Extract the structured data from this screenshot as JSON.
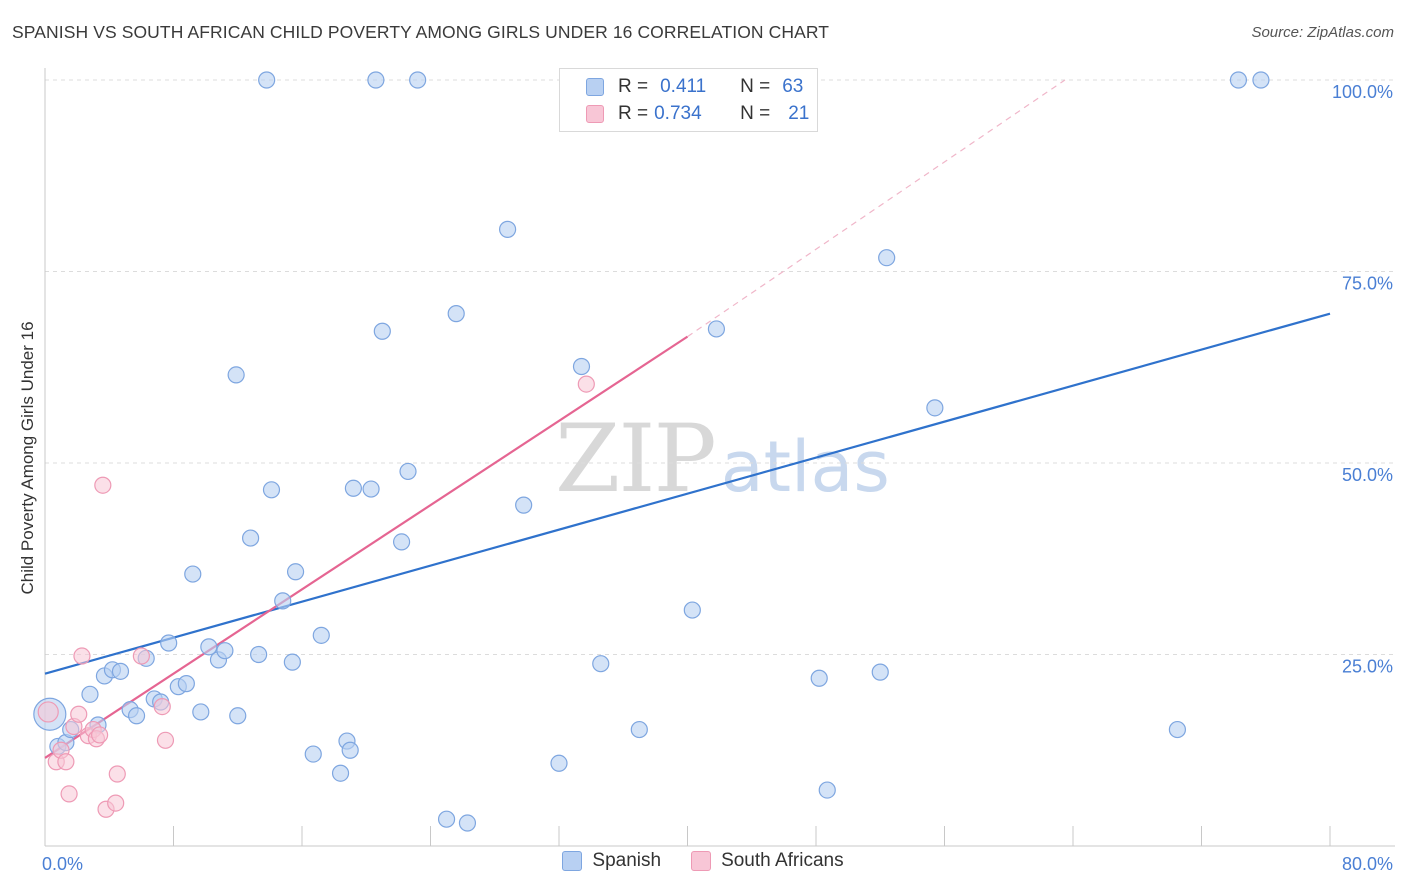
{
  "header": {
    "title": "SPANISH VS SOUTH AFRICAN CHILD POVERTY AMONG GIRLS UNDER 16 CORRELATION CHART",
    "source": "Source: ZipAtlas.com"
  },
  "watermark": {
    "zip": "ZIP",
    "atlas": "atlas"
  },
  "legend": {
    "rows": [
      {
        "r_label": "R =",
        "r_value": "0.411",
        "n_label": "N =",
        "n_value": "63"
      },
      {
        "r_label": "R =",
        "r_value": "0.734",
        "n_label": "N =",
        "n_value": "21"
      }
    ]
  },
  "colors": {
    "spanish_fill": "#b8d0f2",
    "spanish_stroke": "#7ea6e0",
    "spanish_line": "#2f72cc",
    "sa_fill": "#f8c6d6",
    "sa_stroke": "#ee9ab5",
    "sa_line": "#e56592",
    "grid": "#dcdcdc"
  },
  "chart_data": {
    "type": "scatter",
    "title": "SPANISH VS SOUTH AFRICAN CHILD POVERTY AMONG GIRLS UNDER 16 CORRELATION CHART",
    "xlabel": "",
    "ylabel": "Child Poverty Among Girls Under 16",
    "xlim": [
      0,
      80
    ],
    "ylim": [
      0,
      102
    ],
    "x_tick_labels": [
      {
        "value": 0,
        "label": "0.0%"
      },
      {
        "value": 80,
        "label": "80.0%"
      }
    ],
    "y_tick_labels": [
      {
        "value": 25,
        "label": "25.0%"
      },
      {
        "value": 50,
        "label": "50.0%"
      },
      {
        "value": 75,
        "label": "75.0%"
      },
      {
        "value": 100,
        "label": "100.0%"
      }
    ],
    "grid": true,
    "legend_position": "top-center",
    "series": [
      {
        "name": "Spanish",
        "R": 0.411,
        "N": 63,
        "trend": {
          "x": [
            0,
            80
          ],
          "y": [
            22.5,
            69.5
          ]
        },
        "points": [
          [
            0.3,
            17.2,
            16
          ],
          [
            0.8,
            13,
            8
          ],
          [
            1.3,
            13.5,
            8
          ],
          [
            1.6,
            15.2,
            8
          ],
          [
            2.8,
            19.8,
            8
          ],
          [
            3.3,
            15.8,
            8
          ],
          [
            3.7,
            22.2,
            8
          ],
          [
            4.2,
            23,
            8
          ],
          [
            4.7,
            22.8,
            8
          ],
          [
            5.3,
            17.8,
            8
          ],
          [
            5.7,
            17,
            8
          ],
          [
            6.3,
            24.5,
            8
          ],
          [
            6.8,
            19.2,
            8
          ],
          [
            7.2,
            18.8,
            8
          ],
          [
            7.7,
            26.5,
            8
          ],
          [
            8.3,
            20.8,
            8
          ],
          [
            8.8,
            21.2,
            8
          ],
          [
            9.2,
            35.5,
            8
          ],
          [
            9.7,
            17.5,
            8
          ],
          [
            10.2,
            26,
            8
          ],
          [
            10.8,
            24.3,
            8
          ],
          [
            11.2,
            25.5,
            8
          ],
          [
            12.0,
            17,
            8
          ],
          [
            11.9,
            61.5,
            8
          ],
          [
            12.8,
            40.2,
            8
          ],
          [
            13.3,
            25,
            8
          ],
          [
            14.1,
            46.5,
            8
          ],
          [
            14.8,
            32,
            8
          ],
          [
            15.4,
            24,
            8
          ],
          [
            15.6,
            35.8,
            8
          ],
          [
            16.7,
            12,
            8
          ],
          [
            17.2,
            27.5,
            8
          ],
          [
            18.4,
            9.5,
            8
          ],
          [
            18.8,
            13.7,
            8
          ],
          [
            19.0,
            12.5,
            8
          ],
          [
            19.2,
            46.7,
            8
          ],
          [
            20.3,
            46.6,
            8
          ],
          [
            21.0,
            67.2,
            8
          ],
          [
            22.2,
            39.7,
            8
          ],
          [
            22.6,
            48.9,
            8
          ],
          [
            13.8,
            100,
            8
          ],
          [
            20.6,
            100,
            8
          ],
          [
            23.2,
            100,
            8
          ],
          [
            25.0,
            3.5,
            8
          ],
          [
            25.6,
            69.5,
            8
          ],
          [
            26.3,
            3,
            8
          ],
          [
            28.8,
            80.5,
            8
          ],
          [
            29.8,
            44.5,
            8
          ],
          [
            32.0,
            10.8,
            8
          ],
          [
            33.4,
            62.6,
            8
          ],
          [
            34.6,
            23.8,
            8
          ],
          [
            37.0,
            15.2,
            8
          ],
          [
            40.3,
            30.8,
            8
          ],
          [
            41.8,
            67.5,
            8
          ],
          [
            48.2,
            21.9,
            8
          ],
          [
            48.7,
            7.3,
            8
          ],
          [
            52.0,
            22.7,
            8
          ],
          [
            52.4,
            76.8,
            8
          ],
          [
            55.4,
            57.2,
            8
          ],
          [
            70.5,
            15.2,
            8
          ],
          [
            74.3,
            100,
            8
          ],
          [
            75.7,
            100,
            8
          ]
        ]
      },
      {
        "name": "South Africans",
        "R": 0.734,
        "N": 21,
        "trend": {
          "x": [
            0,
            40
          ],
          "y": [
            11.5,
            66.5
          ]
        },
        "trend_extension": {
          "x": [
            40,
            63.5
          ],
          "y": [
            66.5,
            100
          ]
        },
        "points": [
          [
            0.2,
            17.5,
            10
          ],
          [
            0.7,
            11,
            8
          ],
          [
            1.0,
            12.5,
            8
          ],
          [
            1.3,
            11,
            8
          ],
          [
            1.5,
            6.8,
            8
          ],
          [
            1.8,
            15.6,
            8
          ],
          [
            2.1,
            17.2,
            8
          ],
          [
            2.3,
            24.8,
            8
          ],
          [
            2.7,
            14.4,
            8
          ],
          [
            3.0,
            15.2,
            8
          ],
          [
            3.2,
            14,
            8
          ],
          [
            3.4,
            14.5,
            8
          ],
          [
            3.6,
            47.1,
            8
          ],
          [
            3.8,
            4.8,
            8
          ],
          [
            4.4,
            5.6,
            8
          ],
          [
            4.5,
            9.4,
            8
          ],
          [
            6.0,
            24.8,
            8
          ],
          [
            7.3,
            18.2,
            8
          ],
          [
            7.5,
            13.8,
            8
          ],
          [
            33.7,
            60.3,
            8
          ]
        ]
      }
    ]
  },
  "bottom_legend": {
    "items": [
      "Spanish",
      "South Africans"
    ]
  }
}
